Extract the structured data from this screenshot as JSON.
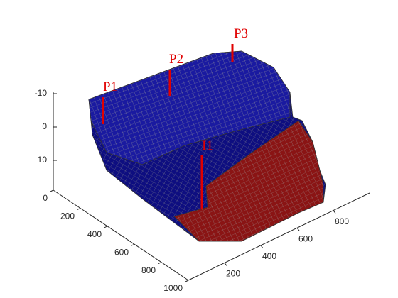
{
  "z_axis": {
    "ticks": [
      -10,
      0,
      10
    ]
  },
  "x_axis": {
    "ticks": [
      0,
      200,
      400,
      600,
      800,
      1000
    ]
  },
  "y_axis": {
    "ticks": [
      200,
      400,
      600,
      800
    ]
  },
  "wells": [
    {
      "label": "P1"
    },
    {
      "label": "P2"
    },
    {
      "label": "P3"
    },
    {
      "label": "I1"
    }
  ]
}
